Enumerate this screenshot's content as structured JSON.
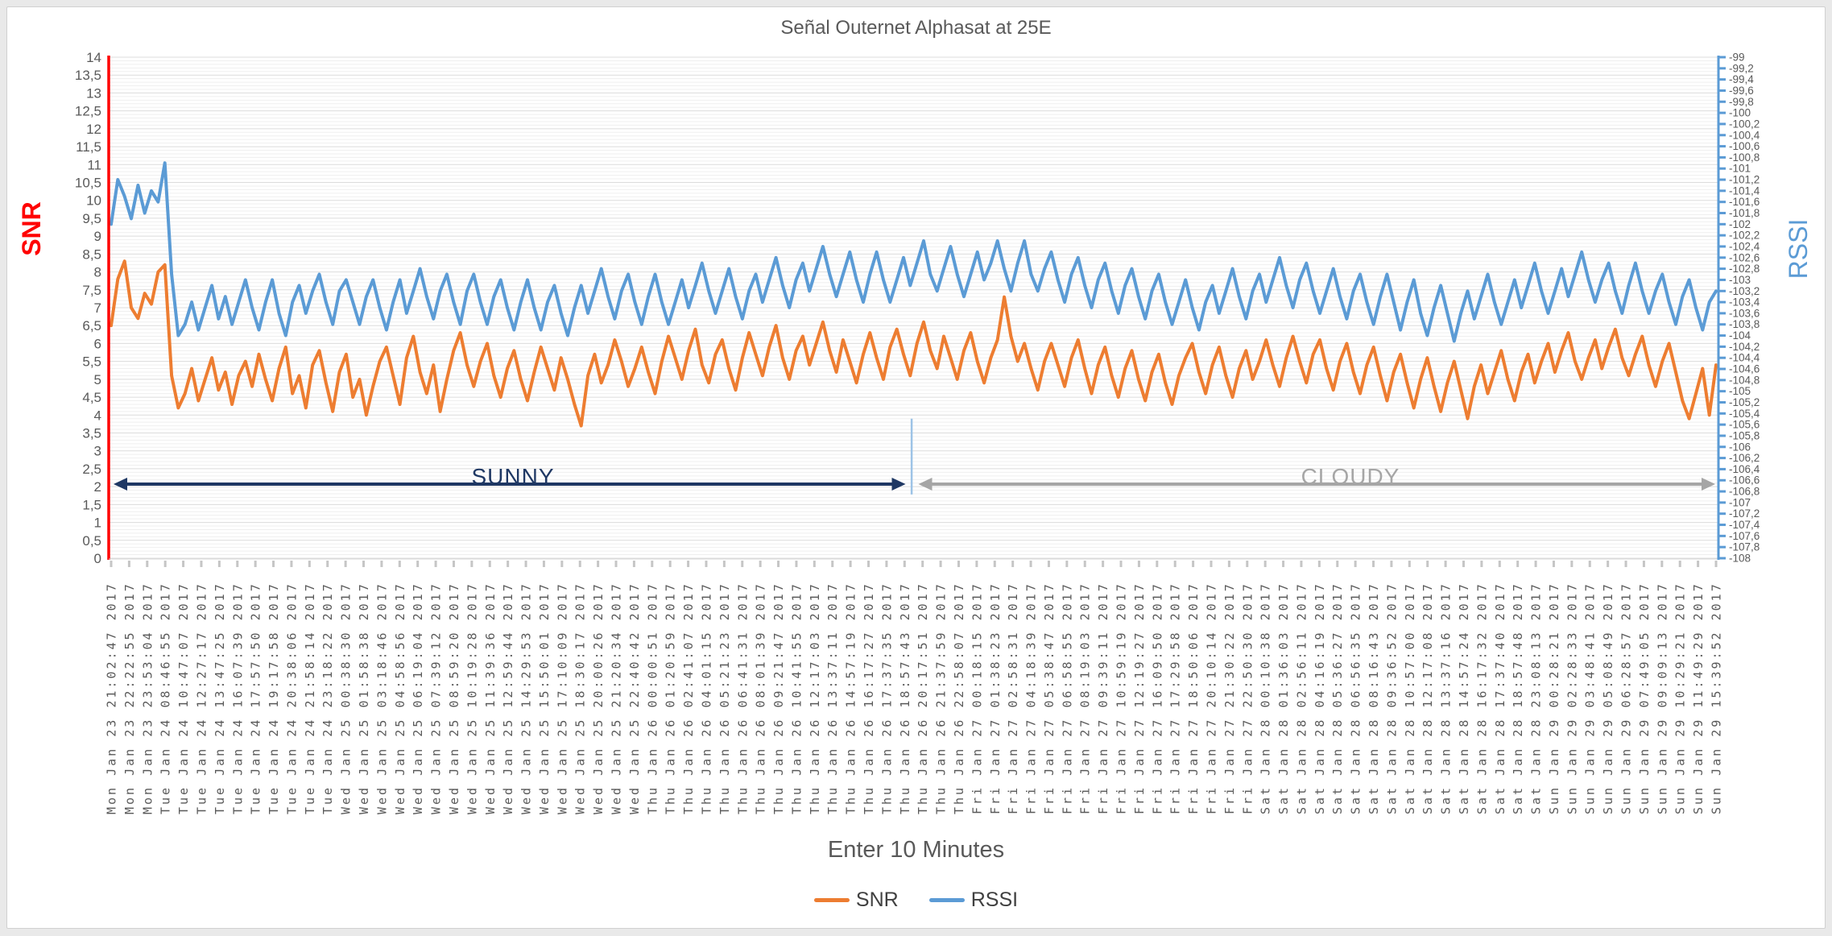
{
  "chart_data": {
    "type": "line",
    "title": "Señal Outernet Alphasat at 25E",
    "x_axis": {
      "title": "Enter 10 Minutes",
      "tick_labels": [
        "Mon Jan 23 21:02:47 2017",
        "Mon Jan 23 22:22:55 2017",
        "Mon Jan 23 23:53:04 2017",
        "Tue Jan 24 08:46:55 2017",
        "Tue Jan 24 10:47:07 2017",
        "Tue Jan 24 12:27:17 2017",
        "Tue Jan 24 13:47:25 2017",
        "Tue Jan 24 16:07:39 2017",
        "Tue Jan 24 17:57:50 2017",
        "Tue Jan 24 19:17:58 2017",
        "Tue Jan 24 20:38:06 2017",
        "Tue Jan 24 21:58:14 2017",
        "Tue Jan 24 23:18:22 2017",
        "Wed Jan 25 00:38:30 2017",
        "Wed Jan 25 01:58:38 2017",
        "Wed Jan 25 03:18:46 2017",
        "Wed Jan 25 04:58:56 2017",
        "Wed Jan 25 06:19:04 2017",
        "Wed Jan 25 07:39:12 2017",
        "Wed Jan 25 08:59:20 2017",
        "Wed Jan 25 10:19:28 2017",
        "Wed Jan 25 11:39:36 2017",
        "Wed Jan 25 12:59:44 2017",
        "Wed Jan 25 14:29:53 2017",
        "Wed Jan 25 15:50:01 2017",
        "Wed Jan 25 17:10:09 2017",
        "Wed Jan 25 18:30:17 2017",
        "Wed Jan 25 20:00:26 2017",
        "Wed Jan 25 21:20:34 2017",
        "Wed Jan 25 22:40:42 2017",
        "Thu Jan 26 00:00:51 2017",
        "Thu Jan 26 01:20:59 2017",
        "Thu Jan 26 02:41:07 2017",
        "Thu Jan 26 04:01:15 2017",
        "Thu Jan 26 05:21:23 2017",
        "Thu Jan 26 06:41:31 2017",
        "Thu Jan 26 08:01:39 2017",
        "Thu Jan 26 09:21:47 2017",
        "Thu Jan 26 10:41:55 2017",
        "Thu Jan 26 12:17:03 2017",
        "Thu Jan 26 13:37:11 2017",
        "Thu Jan 26 14:57:19 2017",
        "Thu Jan 26 16:17:27 2017",
        "Thu Jan 26 17:37:35 2017",
        "Thu Jan 26 18:57:43 2017",
        "Thu Jan 26 20:17:51 2017",
        "Thu Jan 26 21:37:59 2017",
        "Thu Jan 26 22:58:07 2017",
        "Fri Jan 27 00:18:15 2017",
        "Fri Jan 27 01:38:23 2017",
        "Fri Jan 27 02:58:31 2017",
        "Fri Jan 27 04:18:39 2017",
        "Fri Jan 27 05:38:47 2017",
        "Fri Jan 27 06:58:55 2017",
        "Fri Jan 27 08:19:03 2017",
        "Fri Jan 27 09:39:11 2017",
        "Fri Jan 27 10:59:19 2017",
        "Fri Jan 27 12:19:27 2017",
        "Fri Jan 27 16:09:50 2017",
        "Fri Jan 27 17:29:58 2017",
        "Fri Jan 27 18:50:06 2017",
        "Fri Jan 27 20:10:14 2017",
        "Fri Jan 27 21:30:22 2017",
        "Fri Jan 27 22:50:30 2017",
        "Sat Jan 28 00:10:38 2017",
        "Sat Jan 28 01:36:03 2017",
        "Sat Jan 28 02:56:11 2017",
        "Sat Jan 28 04:16:19 2017",
        "Sat Jan 28 05:36:27 2017",
        "Sat Jan 28 06:56:35 2017",
        "Sat Jan 28 08:16:43 2017",
        "Sat Jan 28 09:36:52 2017",
        "Sat Jan 28 10:57:00 2017",
        "Sat Jan 28 12:17:08 2017",
        "Sat Jan 28 13:37:16 2017",
        "Sat Jan 28 14:57:24 2017",
        "Sat Jan 28 16:17:32 2017",
        "Sat Jan 28 17:37:40 2017",
        "Sat Jan 28 18:57:48 2017",
        "Sat Jan 28 23:08:13 2017",
        "Sun Jan 29 00:28:21 2017",
        "Sun Jan 29 02:28:33 2017",
        "Sun Jan 29 03:48:41 2017",
        "Sun Jan 29 05:08:49 2017",
        "Sun Jan 29 06:28:57 2017",
        "Sun Jan 29 07:49:05 2017",
        "Sun Jan 29 09:09:13 2017",
        "Sun Jan 29 10:29:21 2017",
        "Sun Jan 29 11:49:29 2017",
        "Sun Jan 29 15:39:52 2017"
      ]
    },
    "y_axis_left": {
      "title": "SNR",
      "color": "#ff0000",
      "min": 0,
      "max": 14,
      "tick_step": 0.5,
      "tick_labels": [
        "14",
        "13,5",
        "13",
        "12,5",
        "12",
        "11,5",
        "11",
        "10,5",
        "10",
        "9,5",
        "9",
        "8,5",
        "8",
        "7,5",
        "7",
        "6,5",
        "6",
        "5,5",
        "5",
        "4,5",
        "4",
        "3,5",
        "3",
        "2,5",
        "2",
        "1,5",
        "1",
        "0,5",
        "0"
      ]
    },
    "y_axis_right": {
      "title": "RSSI",
      "color": "#5b9bd5",
      "min": -108,
      "max": -99,
      "tick_step": 0.2,
      "tick_labels": [
        "-99",
        "-99,2",
        "-99,4",
        "-99,6",
        "-99,8",
        "-100",
        "-100,2",
        "-100,4",
        "-100,6",
        "-100,8",
        "-101",
        "-101,2",
        "-101,4",
        "-101,6",
        "-101,8",
        "-102",
        "-102,2",
        "-102,4",
        "-102,6",
        "-102,8",
        "-103",
        "-103,2",
        "-103,4",
        "-103,6",
        "-103,8",
        "-104",
        "-104,2",
        "-104,4",
        "-104,6",
        "-104,8",
        "-105",
        "-105,2",
        "-105,4",
        "-105,6",
        "-105,8",
        "-106",
        "-106,2",
        "-106,4",
        "-106,6",
        "-106,8",
        "-107",
        "-107,2",
        "-107,4",
        "-107,6",
        "-107,8",
        "-108"
      ]
    },
    "grid": {
      "minor_step_left_units": 0.1,
      "major_step_left_units": 0.5
    },
    "series": [
      {
        "name": "SNR",
        "color": "#ed7d31",
        "axis": "left",
        "unit": "dB",
        "values": [
          6.5,
          7.8,
          8.3,
          7.0,
          6.7,
          7.4,
          7.1,
          8.0,
          8.2,
          5.1,
          4.2,
          4.6,
          5.3,
          4.4,
          5.0,
          5.6,
          4.7,
          5.2,
          4.3,
          5.1,
          5.5,
          4.8,
          5.7,
          5.0,
          4.4,
          5.3,
          5.9,
          4.6,
          5.1,
          4.2,
          5.4,
          5.8,
          4.9,
          4.1,
          5.2,
          5.7,
          4.5,
          5.0,
          4.0,
          4.8,
          5.5,
          5.9,
          5.1,
          4.3,
          5.6,
          6.2,
          5.2,
          4.6,
          5.4,
          4.1,
          5.0,
          5.8,
          6.3,
          5.4,
          4.8,
          5.5,
          6.0,
          5.1,
          4.5,
          5.3,
          5.8,
          5.0,
          4.4,
          5.2,
          5.9,
          5.3,
          4.7,
          5.6,
          5.0,
          4.3,
          3.7,
          5.1,
          5.7,
          4.9,
          5.4,
          6.1,
          5.5,
          4.8,
          5.3,
          5.9,
          5.2,
          4.6,
          5.5,
          6.2,
          5.6,
          5.0,
          5.8,
          6.4,
          5.4,
          4.9,
          5.7,
          6.1,
          5.3,
          4.7,
          5.6,
          6.3,
          5.7,
          5.1,
          5.9,
          6.5,
          5.6,
          5.0,
          5.8,
          6.2,
          5.4,
          6.0,
          6.6,
          5.8,
          5.2,
          6.1,
          5.5,
          4.9,
          5.7,
          6.3,
          5.6,
          5.0,
          5.9,
          6.4,
          5.7,
          5.1,
          6.0,
          6.6,
          5.8,
          5.3,
          6.2,
          5.6,
          5.0,
          5.8,
          6.3,
          5.5,
          4.9,
          5.6,
          6.1,
          7.3,
          6.2,
          5.5,
          6.0,
          5.3,
          4.7,
          5.5,
          6.0,
          5.4,
          4.8,
          5.6,
          6.1,
          5.3,
          4.6,
          5.4,
          5.9,
          5.1,
          4.5,
          5.3,
          5.8,
          5.0,
          4.4,
          5.2,
          5.7,
          4.9,
          4.3,
          5.1,
          5.6,
          6.0,
          5.2,
          4.6,
          5.4,
          5.9,
          5.1,
          4.5,
          5.3,
          5.8,
          5.0,
          5.5,
          6.1,
          5.4,
          4.8,
          5.6,
          6.2,
          5.5,
          4.9,
          5.7,
          6.1,
          5.3,
          4.7,
          5.5,
          6.0,
          5.2,
          4.6,
          5.4,
          5.9,
          5.1,
          4.4,
          5.2,
          5.7,
          4.9,
          4.2,
          5.0,
          5.6,
          4.8,
          4.1,
          4.9,
          5.5,
          4.7,
          3.9,
          4.8,
          5.4,
          4.6,
          5.2,
          5.8,
          5.0,
          4.4,
          5.2,
          5.7,
          4.9,
          5.5,
          6.0,
          5.2,
          5.8,
          6.3,
          5.5,
          5.0,
          5.6,
          6.1,
          5.3,
          5.9,
          6.4,
          5.6,
          5.1,
          5.7,
          6.2,
          5.4,
          4.8,
          5.5,
          6.0,
          5.2,
          4.4,
          3.9,
          4.6,
          5.3,
          4.0,
          5.4
        ]
      },
      {
        "name": "RSSI",
        "color": "#5b9bd5",
        "axis": "right",
        "unit": "dBm",
        "values": [
          -102.0,
          -101.2,
          -101.5,
          -101.9,
          -101.3,
          -101.8,
          -101.4,
          -101.6,
          -100.9,
          -102.9,
          -104.0,
          -103.8,
          -103.4,
          -103.9,
          -103.5,
          -103.1,
          -103.7,
          -103.3,
          -103.8,
          -103.4,
          -103.0,
          -103.5,
          -103.9,
          -103.4,
          -103.0,
          -103.6,
          -104.0,
          -103.4,
          -103.1,
          -103.6,
          -103.2,
          -102.9,
          -103.4,
          -103.8,
          -103.2,
          -103.0,
          -103.4,
          -103.8,
          -103.3,
          -103.0,
          -103.5,
          -103.9,
          -103.4,
          -103.0,
          -103.6,
          -103.2,
          -102.8,
          -103.3,
          -103.7,
          -103.2,
          -102.9,
          -103.4,
          -103.8,
          -103.2,
          -102.9,
          -103.4,
          -103.8,
          -103.3,
          -103.0,
          -103.5,
          -103.9,
          -103.4,
          -103.0,
          -103.5,
          -103.9,
          -103.4,
          -103.1,
          -103.6,
          -104.0,
          -103.5,
          -103.1,
          -103.6,
          -103.2,
          -102.8,
          -103.3,
          -103.7,
          -103.2,
          -102.9,
          -103.4,
          -103.8,
          -103.3,
          -102.9,
          -103.4,
          -103.8,
          -103.4,
          -103.0,
          -103.5,
          -103.1,
          -102.7,
          -103.2,
          -103.6,
          -103.2,
          -102.8,
          -103.3,
          -103.7,
          -103.2,
          -102.9,
          -103.4,
          -103.0,
          -102.6,
          -103.1,
          -103.5,
          -103.0,
          -102.7,
          -103.2,
          -102.8,
          -102.4,
          -102.9,
          -103.3,
          -102.9,
          -102.5,
          -103.0,
          -103.4,
          -102.9,
          -102.5,
          -103.0,
          -103.4,
          -103.0,
          -102.6,
          -103.1,
          -102.7,
          -102.3,
          -102.9,
          -103.2,
          -102.8,
          -102.4,
          -102.9,
          -103.3,
          -102.9,
          -102.5,
          -103.0,
          -102.7,
          -102.3,
          -102.8,
          -103.2,
          -102.7,
          -102.3,
          -102.9,
          -103.2,
          -102.8,
          -102.5,
          -103.0,
          -103.4,
          -102.9,
          -102.6,
          -103.1,
          -103.5,
          -103.0,
          -102.7,
          -103.2,
          -103.6,
          -103.1,
          -102.8,
          -103.3,
          -103.7,
          -103.2,
          -102.9,
          -103.4,
          -103.8,
          -103.4,
          -103.0,
          -103.5,
          -103.9,
          -103.4,
          -103.1,
          -103.6,
          -103.2,
          -102.8,
          -103.3,
          -103.7,
          -103.2,
          -102.9,
          -103.4,
          -103.0,
          -102.6,
          -103.1,
          -103.5,
          -103.0,
          -102.7,
          -103.2,
          -103.6,
          -103.2,
          -102.8,
          -103.3,
          -103.7,
          -103.2,
          -102.9,
          -103.4,
          -103.8,
          -103.3,
          -102.9,
          -103.4,
          -103.9,
          -103.4,
          -103.0,
          -103.6,
          -104.0,
          -103.5,
          -103.1,
          -103.6,
          -104.1,
          -103.6,
          -103.2,
          -103.7,
          -103.3,
          -102.9,
          -103.4,
          -103.8,
          -103.4,
          -103.0,
          -103.5,
          -103.1,
          -102.7,
          -103.2,
          -103.6,
          -103.2,
          -102.8,
          -103.3,
          -102.9,
          -102.5,
          -103.0,
          -103.4,
          -103.0,
          -102.7,
          -103.2,
          -103.6,
          -103.1,
          -102.7,
          -103.2,
          -103.6,
          -103.2,
          -102.9,
          -103.4,
          -103.8,
          -103.3,
          -103.0,
          -103.5,
          -103.9,
          -103.4,
          -103.2
        ]
      }
    ],
    "annotations": {
      "sunny": {
        "label": "SUNNY",
        "color": "#1f3864",
        "x_start_frac": 0.003,
        "x_end_frac": 0.495,
        "y_value": 2.07
      },
      "cloudy": {
        "label": "CLOUDY",
        "color": "#a6a6a6",
        "x_start_frac": 0.503,
        "x_end_frac": 0.998,
        "y_value": 2.07
      },
      "divider": {
        "x_frac": 0.4988,
        "y_top_value": 3.9,
        "y_bottom_value": 1.78,
        "color": "#9dc3e6"
      }
    },
    "legend": [
      {
        "label": "SNR",
        "color": "#ed7d31"
      },
      {
        "label": "RSSI",
        "color": "#5b9bd5"
      }
    ]
  }
}
